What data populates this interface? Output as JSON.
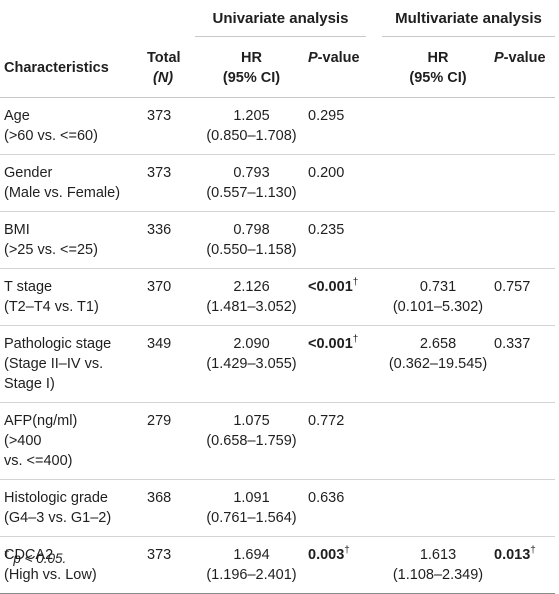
{
  "headers": {
    "univariate": "Univariate analysis",
    "multivariate": "Multivariate analysis",
    "characteristics": "Characteristics",
    "total_line1": "Total",
    "total_line2": "(N)",
    "hr_line1": "HR",
    "hr_line2": "(95% CI)",
    "p_value_p": "P",
    "p_value_rest": "-value"
  },
  "rows": [
    {
      "char": [
        "Age",
        "(>60 vs. <=60)"
      ],
      "total": "373",
      "uni_hr": [
        "1.205",
        "(0.850–1.708)"
      ],
      "uni_p": "0.295",
      "multi_hr": [
        "",
        ""
      ],
      "multi_p": ""
    },
    {
      "char": [
        "Gender",
        "(Male vs. Female)"
      ],
      "total": "373",
      "uni_hr": [
        "0.793",
        "(0.557–1.130)"
      ],
      "uni_p": "0.200",
      "multi_hr": [
        "",
        ""
      ],
      "multi_p": ""
    },
    {
      "char": [
        "BMI",
        "(>25 vs. <=25)"
      ],
      "total": "336",
      "uni_hr": [
        "0.798",
        "(0.550–1.158)"
      ],
      "uni_p": "0.235",
      "multi_hr": [
        "",
        ""
      ],
      "multi_p": ""
    },
    {
      "char": [
        "T stage",
        "(T2–T4 vs. T1)"
      ],
      "total": "370",
      "uni_hr": [
        "2.126",
        "(1.481–3.052)"
      ],
      "uni_p": "<0.001",
      "multi_hr": [
        "0.731",
        "(0.101–5.302)"
      ],
      "multi_p": "0.757"
    },
    {
      "char": [
        "Pathologic stage",
        "(Stage II–IV vs.",
        "Stage I)"
      ],
      "total": "349",
      "uni_hr": [
        "2.090",
        "(1.429–3.055)"
      ],
      "uni_p": "<0.001",
      "multi_hr": [
        "2.658",
        "(0.362–19.545)"
      ],
      "multi_p": "0.337"
    },
    {
      "char": [
        "AFP(ng/ml)",
        "(>400",
        "vs. <=400)"
      ],
      "total": "279",
      "uni_hr": [
        "1.075",
        "(0.658–1.759)"
      ],
      "uni_p": "0.772",
      "multi_hr": [
        "",
        ""
      ],
      "multi_p": ""
    },
    {
      "char": [
        "Histologic grade",
        "(G4–3 vs. G1–2)"
      ],
      "total": "368",
      "uni_hr": [
        "1.091",
        "(0.761–1.564)"
      ],
      "uni_p": "0.636",
      "multi_hr": [
        "",
        ""
      ],
      "multi_p": ""
    },
    {
      "char": [
        "CDCA2",
        "(High vs. Low)"
      ],
      "total": "373",
      "uni_hr": [
        "1.694",
        "(1.196–2.401)"
      ],
      "uni_p": "0.003",
      "multi_hr": [
        "1.613",
        "(1.108–2.349)"
      ],
      "multi_p": "0.013"
    }
  ],
  "dagger": "†",
  "footnote": {
    "mark": "†",
    "text": " p < 0.05."
  }
}
